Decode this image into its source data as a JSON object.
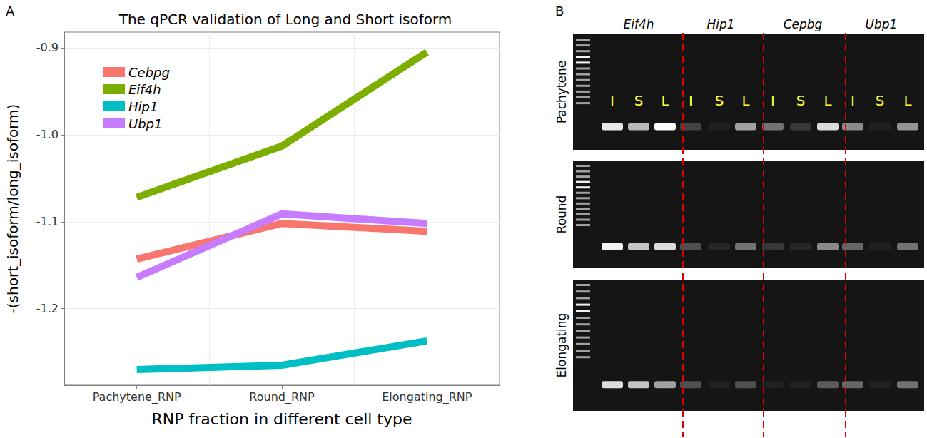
{
  "chart_data": {
    "type": "line",
    "panel_label": "A",
    "title": "The qPCR validation of Long and Short isoform",
    "x_label": "RNP fraction in different cell type",
    "y_label": "-(short_isoform/long_isoform)",
    "categories": [
      "Pachytene_RNP",
      "Round_RNP",
      "Elongating_RNP"
    ],
    "series": [
      {
        "name": "Cebpg",
        "color": "#F8766D",
        "values": [
          -1.143,
          -1.102,
          -1.111
        ]
      },
      {
        "name": "Eif4h",
        "color": "#7CAE00",
        "values": [
          -1.072,
          -1.013,
          -0.905
        ]
      },
      {
        "name": "Hip1",
        "color": "#00BFC4",
        "values": [
          -1.27,
          -1.265,
          -1.237
        ]
      },
      {
        "name": "Ubp1",
        "color": "#C77CFF",
        "values": [
          -1.164,
          -1.091,
          -1.102
        ]
      }
    ],
    "ylim": [
      -1.288,
      -0.882
    ],
    "yticks": [
      -1.2,
      -1.1,
      {
        "value": -1,
        "label": "-1.0"
      },
      -0.9
    ],
    "grid": true,
    "legend": "upper left"
  },
  "gel": {
    "panel_label": "B",
    "columns": [
      "Eif4h",
      "Hip1",
      "Cepbg",
      "Ubp1"
    ],
    "lane_labels": [
      "I",
      "S",
      "L"
    ],
    "rows": [
      {
        "name": "Pachytene",
        "intensity": [
          0.9,
          0.7,
          1.0,
          0.2,
          0.05,
          0.6,
          0.4,
          0.15,
          0.85,
          0.5,
          0.05,
          0.55
        ]
      },
      {
        "name": "Round",
        "intensity": [
          0.95,
          0.75,
          0.85,
          0.25,
          0.08,
          0.4,
          0.15,
          0.08,
          0.5,
          0.35,
          0.05,
          0.4
        ]
      },
      {
        "name": "Elongating",
        "intensity": [
          0.85,
          0.75,
          0.6,
          0.25,
          0.05,
          0.25,
          0.05,
          0.05,
          0.3,
          0.35,
          0.05,
          0.4
        ]
      }
    ]
  }
}
